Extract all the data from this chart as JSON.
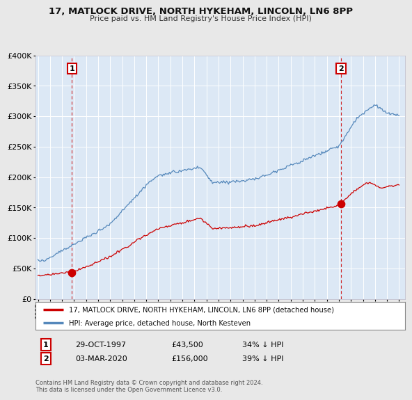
{
  "title": "17, MATLOCK DRIVE, NORTH HYKEHAM, LINCOLN, LN6 8PP",
  "subtitle": "Price paid vs. HM Land Registry's House Price Index (HPI)",
  "bg_color": "#e8e8e8",
  "plot_bg_color": "#dce8f5",
  "legend_label_red": "17, MATLOCK DRIVE, NORTH HYKEHAM, LINCOLN, LN6 8PP (detached house)",
  "legend_label_blue": "HPI: Average price, detached house, North Kesteven",
  "footer": "Contains HM Land Registry data © Crown copyright and database right 2024.\nThis data is licensed under the Open Government Licence v3.0.",
  "point1_label": "1",
  "point1_date": "29-OCT-1997",
  "point1_price": "£43,500",
  "point1_hpi": "34% ↓ HPI",
  "point1_x": 1997.83,
  "point1_y": 43500,
  "point2_label": "2",
  "point2_date": "03-MAR-2020",
  "point2_price": "£156,000",
  "point2_hpi": "39% ↓ HPI",
  "point2_x": 2020.17,
  "point2_y": 156000,
  "ylim": [
    0,
    400000
  ],
  "xlim_start": 1994.8,
  "xlim_end": 2025.5,
  "red_color": "#cc0000",
  "blue_color": "#5588bb",
  "grid_color": "#aaaacc",
  "hpi_seed": 12,
  "red_seed": 77
}
